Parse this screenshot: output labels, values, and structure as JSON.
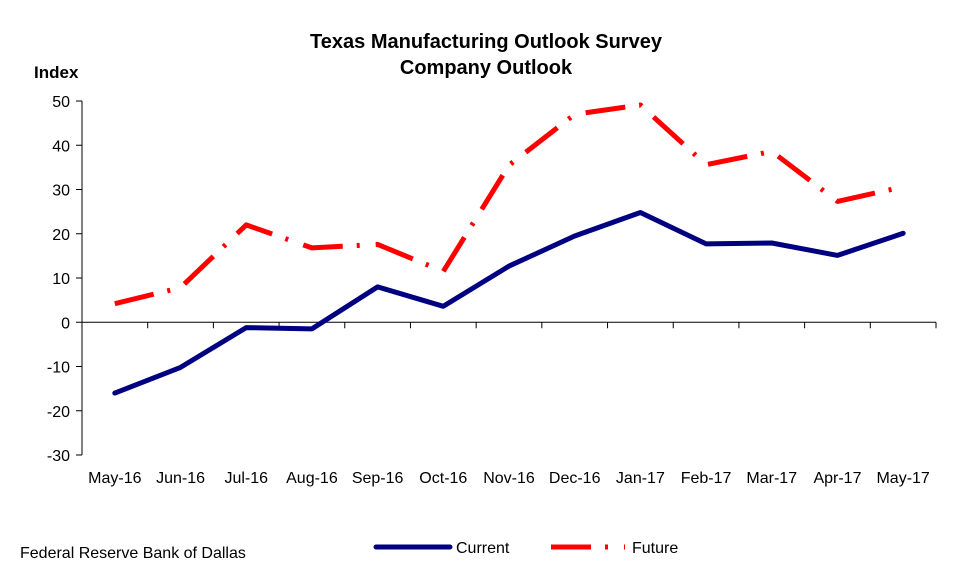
{
  "chart_data": {
    "type": "line",
    "title": "Texas Manufacturing Outlook Survey",
    "subtitle": "Company Outlook",
    "ylabel": "Index",
    "xlabel": "",
    "ylim": [
      -30,
      50
    ],
    "yticks": [
      50,
      40,
      30,
      20,
      10,
      0,
      -10,
      -20,
      -30
    ],
    "categories": [
      "May-16",
      "Jun-16",
      "Jul-16",
      "Aug-16",
      "Sep-16",
      "Oct-16",
      "Nov-16",
      "Dec-16",
      "Jan-17",
      "Feb-17",
      "Mar-17",
      "Apr-17",
      "May-17"
    ],
    "series": [
      {
        "name": "Current",
        "color": "#000080",
        "style": "solid",
        "values": [
          -16.0,
          -10.2,
          -1.2,
          -1.5,
          8.0,
          3.6,
          12.7,
          19.5,
          24.8,
          17.7,
          17.9,
          15.1,
          20.1
        ]
      },
      {
        "name": "Future",
        "color": "#ff0000",
        "style": "dash-dot",
        "values": [
          4.2,
          7.8,
          22.0,
          16.8,
          17.6,
          11.5,
          35.5,
          47.0,
          49.1,
          35.6,
          38.6,
          27.3,
          30.6
        ]
      }
    ],
    "grid": false,
    "legend": "bottom"
  },
  "footer": {
    "source": "Federal Reserve Bank of Dallas"
  }
}
